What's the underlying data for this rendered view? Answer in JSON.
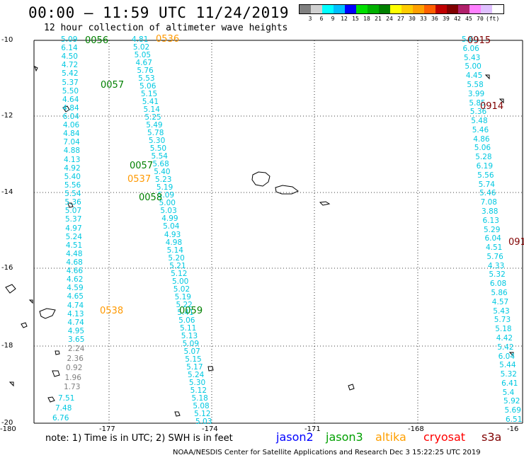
{
  "header": {
    "title": "00:00 – 11:59 UTC 11/24/2019",
    "subtitle": "12 hour collection of altimeter wave heights"
  },
  "colorbar": {
    "colors": [
      "#808080",
      "#d0d0d0",
      "#00ffff",
      "#00bfff",
      "#0000ff",
      "#00e000",
      "#00b000",
      "#008000",
      "#ffff00",
      "#ffcc00",
      "#ffa000",
      "#ff6000",
      "#c00000",
      "#800000",
      "#b0206a",
      "#ff80ff",
      "#e0c0ff",
      "#ffffff"
    ],
    "ticks": [
      "3",
      "6",
      "9",
      "12",
      "15",
      "18",
      "21",
      "24",
      "27",
      "30",
      "33",
      "36",
      "39",
      "42",
      "45",
      "70",
      "(ft)"
    ]
  },
  "axes": {
    "lat_labels": [
      "-10",
      "-12",
      "-14",
      "-16",
      "-18",
      "-20"
    ],
    "lon_labels": [
      "-180",
      "-177",
      "-174",
      "-171",
      "-168",
      "-16"
    ]
  },
  "passes": {
    "A": [
      "5.09",
      "6.14",
      "4.50",
      "4.72",
      "5.42",
      "5.37",
      "5.50",
      "4.64",
      "4.84",
      "6.04",
      "4.06",
      "4.84",
      "7.04",
      "4.88",
      "4.13",
      "4.92",
      "5.40",
      "5.56",
      "5.54",
      "5.36",
      "5.07",
      "5.37",
      "4.97",
      "5.24",
      "4.51",
      "4.48",
      "4.68",
      "4.66",
      "4.62",
      "4.59",
      "4.65",
      "4.74",
      "4.13",
      "4.74",
      "4.95",
      "3.65"
    ],
    "A_gray": [
      "2.24",
      "2.36",
      "0.92",
      "1.96",
      "1.73"
    ],
    "A_tail": [
      "7.51",
      "7.48",
      "6.76"
    ],
    "B": [
      "4.81",
      "5.02",
      "5.05",
      "4.67",
      "5.76",
      "5.53",
      "5.06",
      "5.15",
      "5.41",
      "5.14",
      "5.25",
      "5.49",
      "5.78",
      "5.30",
      "5.50",
      "5.54",
      "5.68",
      "5.40",
      "5.23",
      "5.19",
      "5.09",
      "5.00",
      "5.03",
      "4.99",
      "5.04",
      "4.93",
      "4.98",
      "5.14",
      "5.20",
      "5.21",
      "5.12",
      "5.00",
      "5.02",
      "5.19",
      "5.22",
      "5.41",
      "5.06",
      "5.11",
      "5.13",
      "5.09",
      "5.07",
      "5.15",
      "5.17",
      "5.24",
      "5.30",
      "5.12",
      "5.18",
      "5.08",
      "5.12",
      "5.03"
    ],
    "E": [
      "5.60",
      "6.06",
      "5.43",
      "5.00",
      "4.45",
      "5.58",
      "3.99",
      "5.85",
      "5.36",
      "5.48",
      "5.46",
      "4.86",
      "5.06",
      "5.28",
      "6.19",
      "5.56",
      "5.74",
      "5.46",
      "7.08",
      "3.88",
      "6.13",
      "5.29",
      "6.04",
      "4.51",
      "5.76",
      "4.33",
      "5.32",
      "6.08",
      "5.86",
      "4.57",
      "5.43",
      "5.73",
      "5.18",
      "4.42",
      "5.42",
      "6.04",
      "5.44",
      "5.32",
      "6.41",
      "5.4",
      "5.92",
      "5.69",
      "6.51"
    ],
    "time_labels": [
      {
        "text": "0056",
        "color": "#008000"
      },
      {
        "text": "0536",
        "color": "#ff9900"
      },
      {
        "text": "0057",
        "color": "#008000"
      },
      {
        "text": "0057",
        "color": "#008000"
      },
      {
        "text": "0537",
        "color": "#ff9900"
      },
      {
        "text": "0058",
        "color": "#008000"
      },
      {
        "text": "0538",
        "color": "#ff9900"
      },
      {
        "text": "0059",
        "color": "#008000"
      },
      {
        "text": "0915",
        "color": "#800000"
      },
      {
        "text": "0914",
        "color": "#800000"
      },
      {
        "text": "091",
        "color": "#800000"
      }
    ]
  },
  "note": "note:  1) Time is in UTC; 2) SWH is in feet",
  "legend": [
    {
      "name": "jason2",
      "color": "#0000ff"
    },
    {
      "name": "jason3",
      "color": "#00a000"
    },
    {
      "name": "altika",
      "color": "#ffa000"
    },
    {
      "name": "cryosat",
      "color": "#ff0000"
    },
    {
      "name": "s3a",
      "color": "#800000"
    }
  ],
  "footer": "NOAA/NESDIS Center for Satellite Applications and Research    Dec  3 15:22:25 UTC 2019"
}
